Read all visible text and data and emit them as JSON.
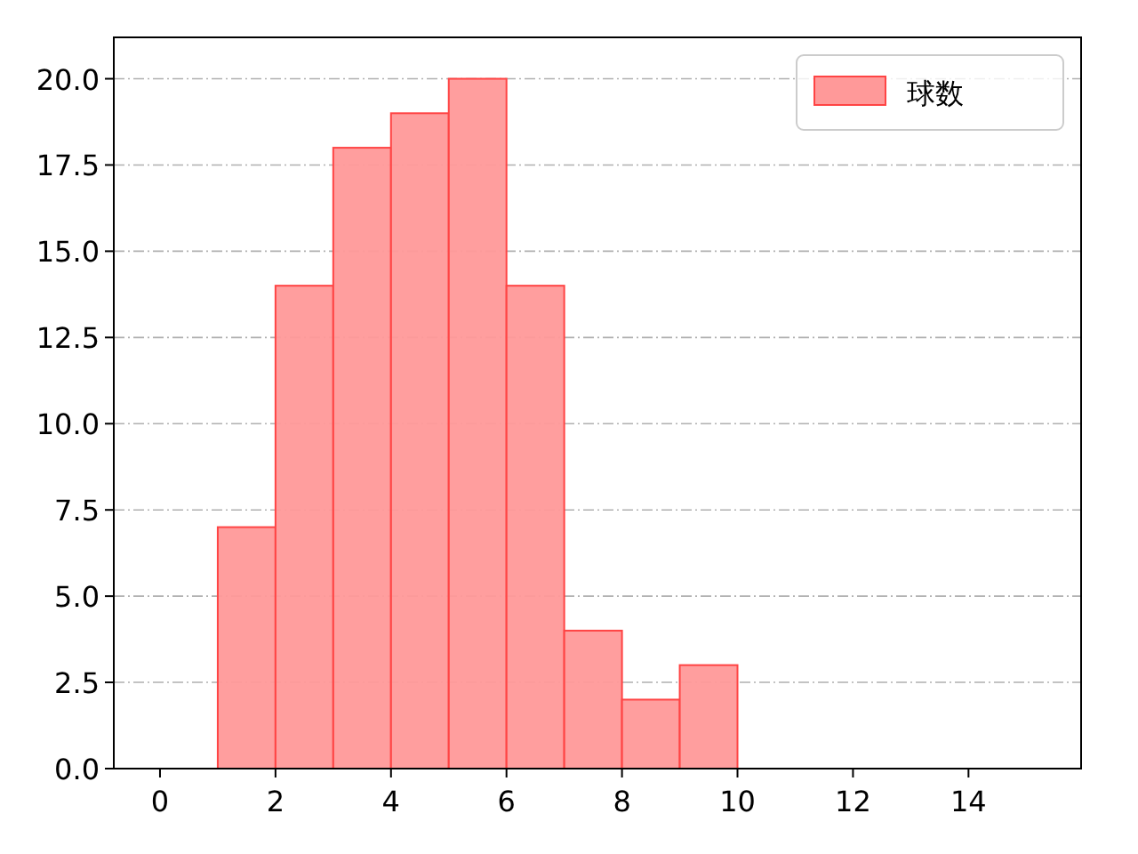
{
  "chart_data": {
    "type": "histogram",
    "bins": [
      1,
      2,
      3,
      4,
      5,
      6,
      7,
      8,
      9,
      10
    ],
    "series": [
      {
        "name": "球数",
        "color": "#ff9999",
        "values": [
          7,
          14,
          18,
          19,
          20,
          14,
          4,
          2,
          3
        ]
      }
    ],
    "xlim": [
      -0.8,
      15.95
    ],
    "ylim": [
      0,
      21.2
    ],
    "xticks": [
      0,
      2,
      4,
      6,
      8,
      10,
      12,
      14
    ],
    "yticks": [
      {
        "value": 0,
        "label": "0.0"
      },
      {
        "value": 2.5,
        "label": "2.5"
      },
      {
        "value": 5,
        "label": "5.0"
      },
      {
        "value": 7.5,
        "label": "7.5"
      },
      {
        "value": 10,
        "label": "10.0"
      },
      {
        "value": 12.5,
        "label": "12.5"
      },
      {
        "value": 15,
        "label": "15.0"
      },
      {
        "value": 17.5,
        "label": "17.5"
      },
      {
        "value": 20,
        "label": "20.0"
      }
    ],
    "grid": "y",
    "legend": "top right"
  }
}
